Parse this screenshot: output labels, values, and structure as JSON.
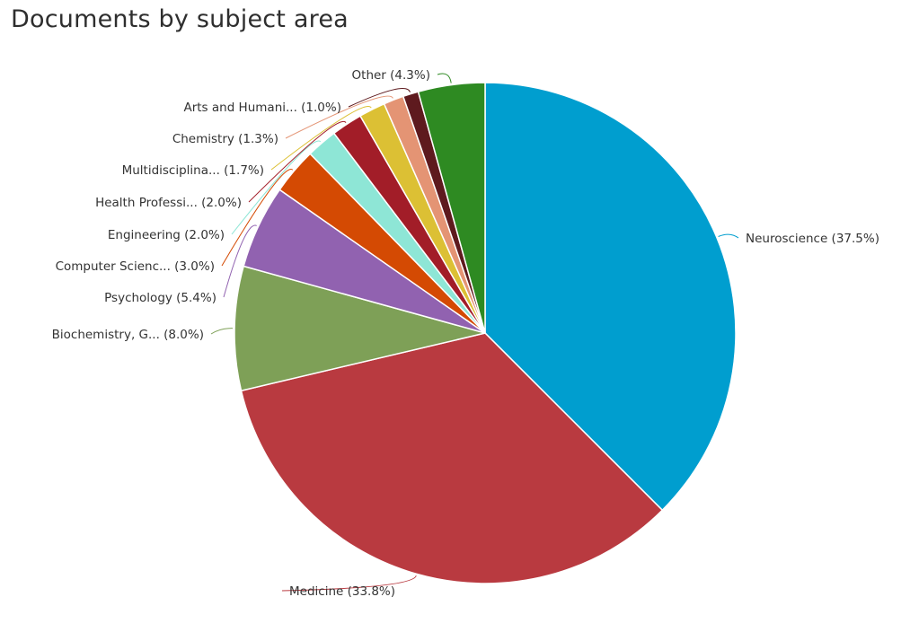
{
  "chart_data": {
    "type": "pie",
    "title": "Documents by subject area",
    "start_angle_deg": 0,
    "direction": "clockwise-from-top",
    "slices": [
      {
        "label": "Neuroscience (37.5%)",
        "value": 37.5,
        "color": "#009ecf"
      },
      {
        "label": "Medicine (33.8%)",
        "value": 33.8,
        "color": "#b93a40"
      },
      {
        "label": "Biochemistry, G... (8.0%)",
        "value": 8.0,
        "color": "#7ea057"
      },
      {
        "label": "Psychology (5.4%)",
        "value": 5.4,
        "color": "#9162b0"
      },
      {
        "label": "Computer Scienc... (3.0%)",
        "value": 3.0,
        "color": "#d44a03"
      },
      {
        "label": "Engineering (2.0%)",
        "value": 2.0,
        "color": "#8ee6d6"
      },
      {
        "label": "Health Professi... (2.0%)",
        "value": 2.0,
        "color": "#a21d28"
      },
      {
        "label": "Multidisciplina... (1.7%)",
        "value": 1.7,
        "color": "#dcc034"
      },
      {
        "label": "Chemistry (1.3%)",
        "value": 1.3,
        "color": "#e49474"
      },
      {
        "label": "Arts and Humani... (1.0%)",
        "value": 1.0,
        "color": "#5e1a1e"
      },
      {
        "label": "Other (4.3%)",
        "value": 4.3,
        "color": "#2e8a22"
      }
    ]
  }
}
